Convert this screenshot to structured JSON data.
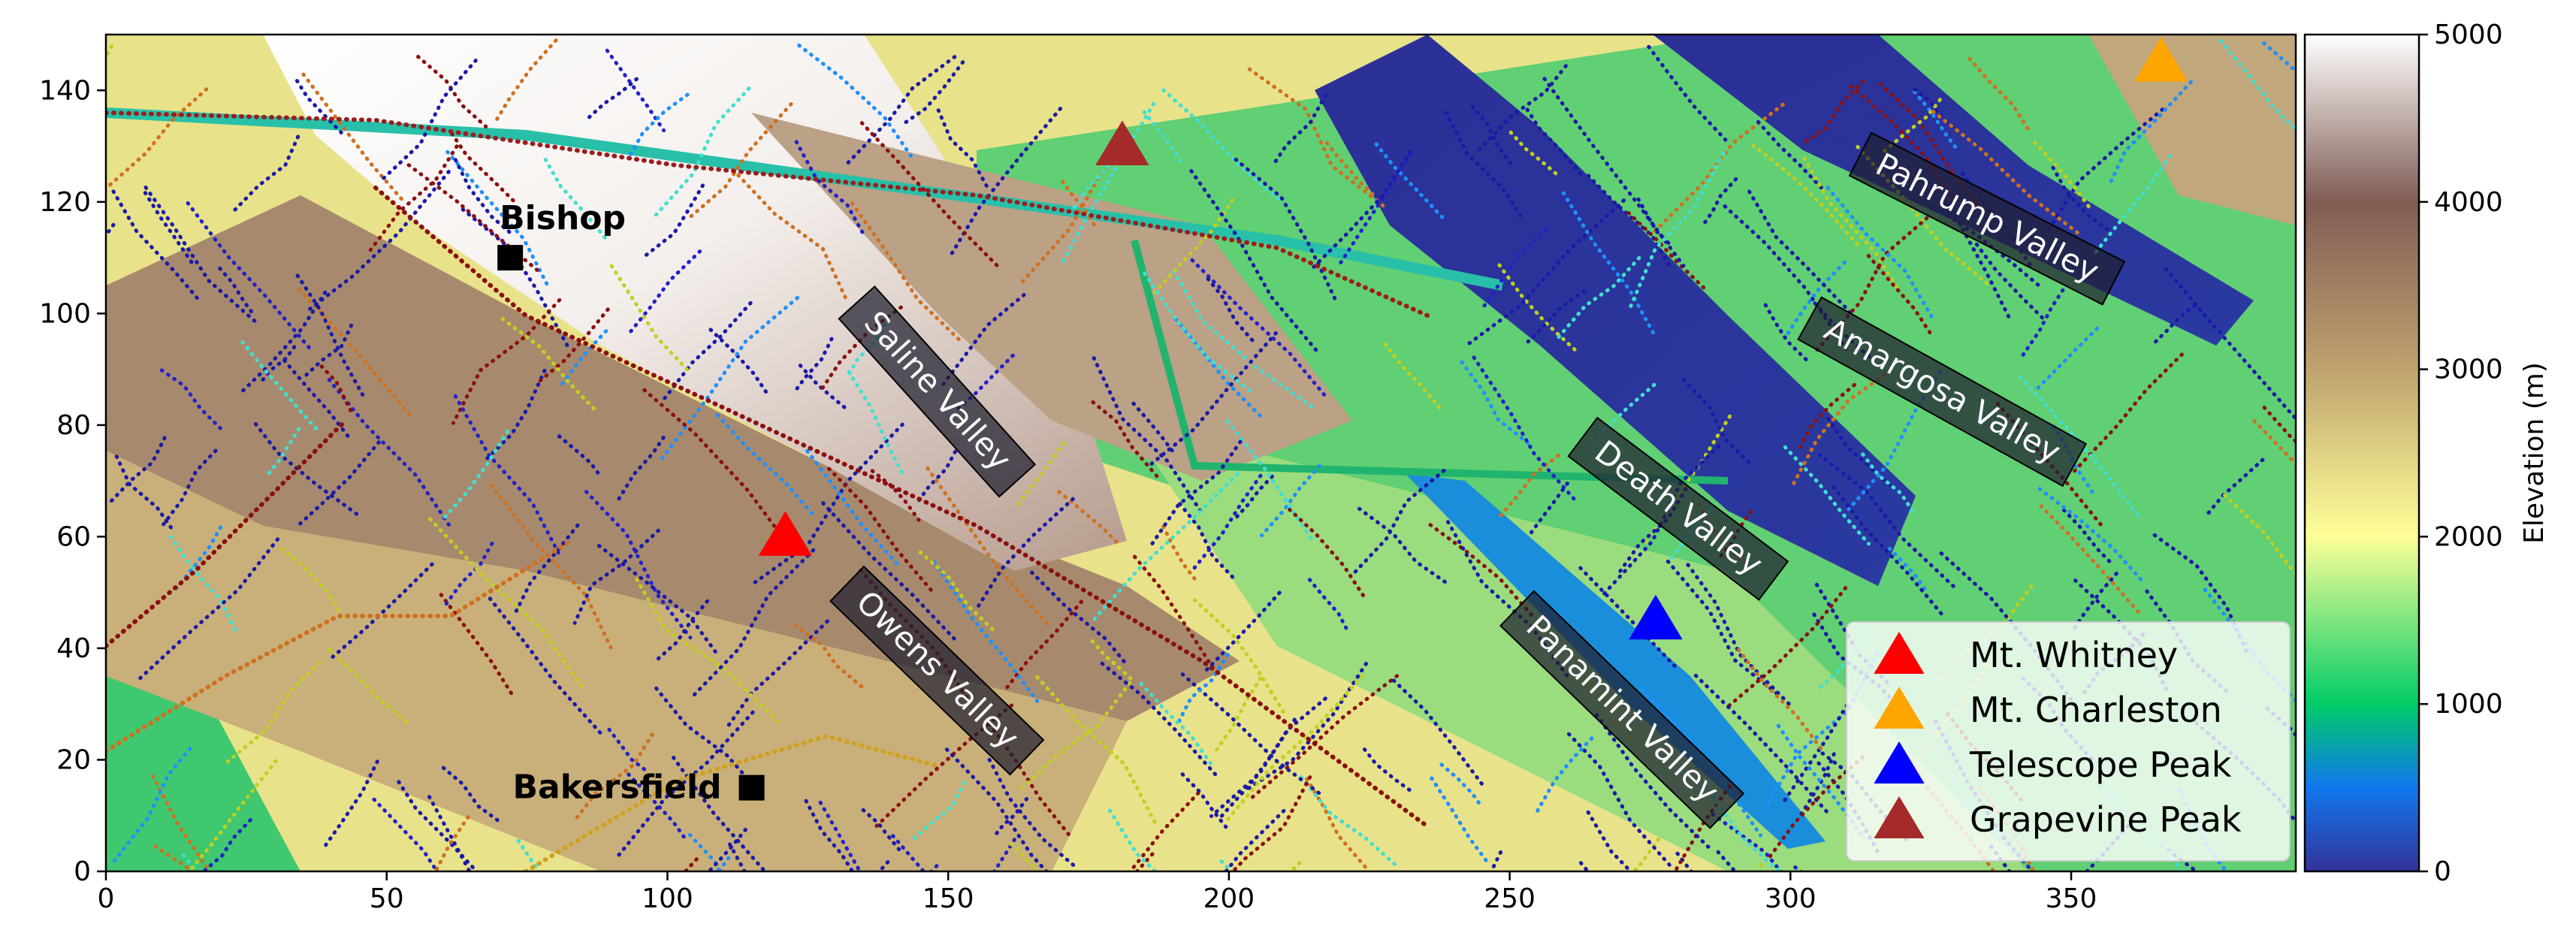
{
  "map": {
    "x_ticks": [
      "0",
      "50",
      "100",
      "150",
      "200",
      "250",
      "300",
      "350"
    ],
    "y_ticks": [
      "0",
      "20",
      "40",
      "60",
      "80",
      "100",
      "120",
      "140"
    ],
    "x_range": [
      0,
      390
    ],
    "y_range": [
      0,
      150
    ],
    "colormap": "terrain",
    "colorbar": {
      "label": "Elevation (m)",
      "ticks": [
        "0",
        "1000",
        "2000",
        "3000",
        "4000",
        "5000"
      ],
      "range": [
        0,
        5000
      ]
    },
    "cities": [
      {
        "name": "Bishop",
        "x": 72,
        "y": 110
      },
      {
        "name": "Bakersfield",
        "x": 115,
        "y": 15
      }
    ],
    "valleys": [
      {
        "name": "Saline Valley",
        "x": 148,
        "y": 86,
        "angle": 48
      },
      {
        "name": "Owens Valley",
        "x": 148,
        "y": 36,
        "angle": 44
      },
      {
        "name": "Death Valley",
        "x": 280,
        "y": 65,
        "angle": 37
      },
      {
        "name": "Panamint Valley",
        "x": 270,
        "y": 29,
        "angle": 44
      },
      {
        "name": "Amargosa Valley",
        "x": 327,
        "y": 86,
        "angle": 29
      },
      {
        "name": "Pahrump Valley",
        "x": 335,
        "y": 117,
        "angle": 27
      }
    ],
    "peaks": [
      {
        "name": "Mt. Whitney",
        "x": 121,
        "y": 60,
        "color": "#ff0000"
      },
      {
        "name": "Mt. Charleston",
        "x": 366,
        "y": 145,
        "color": "#ffa500"
      },
      {
        "name": "Telescope Peak",
        "x": 276,
        "y": 45,
        "color": "#0000ff"
      },
      {
        "name": "Grapevine Peak",
        "x": 181,
        "y": 130,
        "color": "#a52a2a"
      }
    ],
    "legend_position": "lower-right"
  }
}
